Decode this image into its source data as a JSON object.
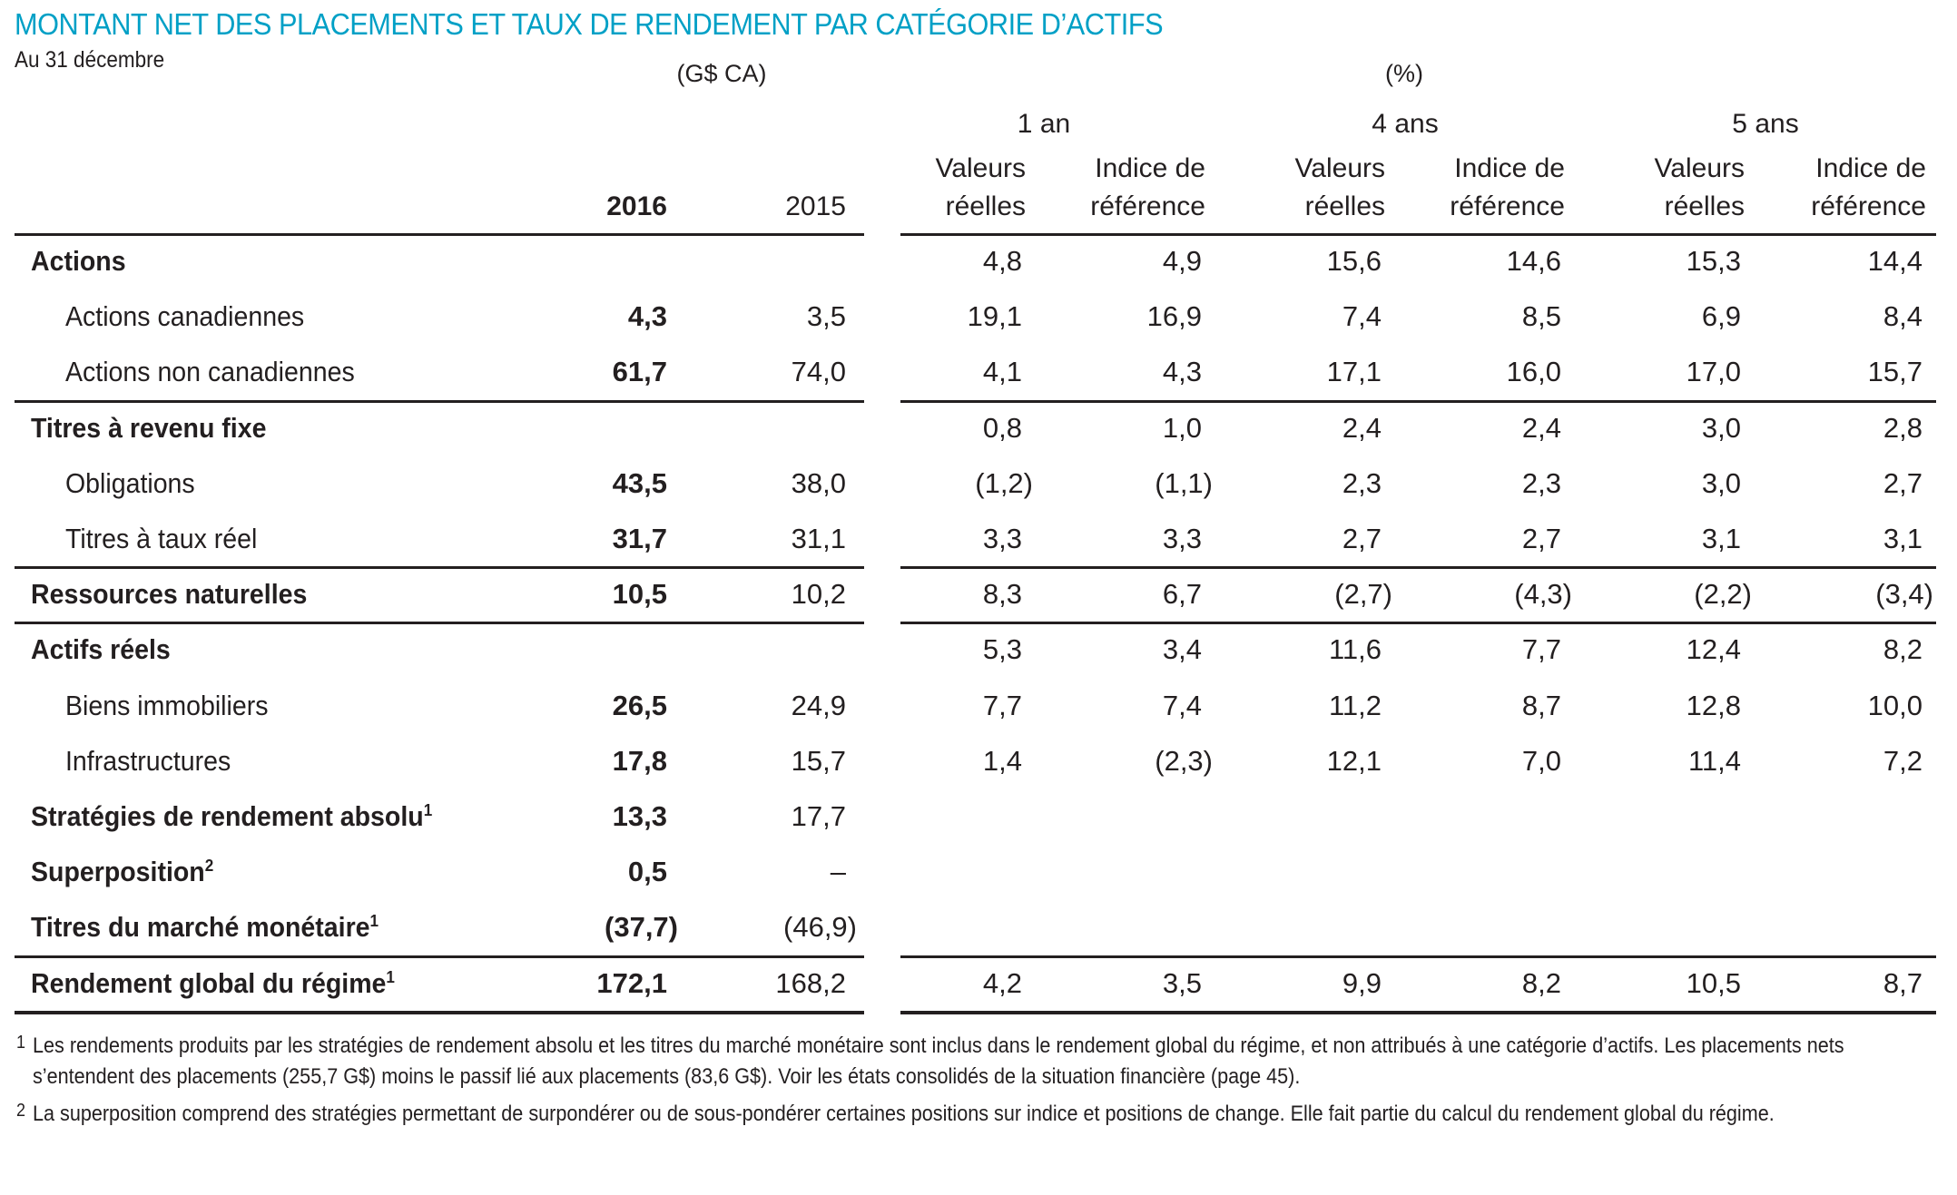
{
  "title": "MONTANT NET DES PLACEMENTS ET TAUX DE RENDEMENT PAR CATÉGORIE D’ACTIFS",
  "subtitle": "Au 31 décembre",
  "colors": {
    "title": "#00a0c6",
    "text": "#231f20"
  },
  "header": {
    "amount_unit": "(G$ CA)",
    "return_unit": "(%)",
    "years": [
      "2016",
      "2015"
    ],
    "groups": [
      "1 an",
      "4 ans",
      "5 ans"
    ],
    "subcols": [
      {
        "line1": "Valeurs",
        "line2": "réelles"
      },
      {
        "line1": "Indice de",
        "line2": "référence"
      },
      {
        "line1": "Valeurs",
        "line2": "réelles"
      },
      {
        "line1": "Indice de",
        "line2": "référence"
      },
      {
        "line1": "Valeurs",
        "line2": "réelles"
      },
      {
        "line1": "Indice de",
        "line2": "référence"
      }
    ]
  },
  "rows": [
    {
      "label": "Actions",
      "sup": "",
      "type": "section",
      "v2016": "",
      "v2015": "",
      "r": [
        "4,8",
        "4,9",
        "15,6",
        "14,6",
        "15,3",
        "14,4"
      ]
    },
    {
      "label": "Actions canadiennes",
      "sup": "",
      "type": "sub",
      "v2016": "4,3",
      "v2015": "3,5",
      "r": [
        "19,1",
        "16,9",
        "7,4",
        "8,5",
        "6,9",
        "8,4"
      ]
    },
    {
      "label": "Actions non canadiennes",
      "sup": "",
      "type": "sub",
      "v2016": "61,7",
      "v2015": "74,0",
      "r": [
        "4,1",
        "4,3",
        "17,1",
        "16,0",
        "17,0",
        "15,7"
      ]
    },
    {
      "label": "Titres à revenu fixe",
      "sup": "",
      "type": "section",
      "v2016": "",
      "v2015": "",
      "r": [
        "0,8",
        "1,0",
        "2,4",
        "2,4",
        "3,0",
        "2,8"
      ]
    },
    {
      "label": "Obligations",
      "sup": "",
      "type": "sub",
      "v2016": "43,5",
      "v2015": "38,0",
      "r": [
        "(1,2)",
        "(1,1)",
        "2,3",
        "2,3",
        "3,0",
        "2,7"
      ]
    },
    {
      "label": "Titres à taux réel",
      "sup": "",
      "type": "sub",
      "v2016": "31,7",
      "v2015": "31,1",
      "r": [
        "3,3",
        "3,3",
        "2,7",
        "2,7",
        "3,1",
        "3,1"
      ]
    },
    {
      "label": "Ressources naturelles",
      "sup": "",
      "type": "section",
      "v2016": "10,5",
      "v2015": "10,2",
      "r": [
        "8,3",
        "6,7",
        "(2,7)",
        "(4,3)",
        "(2,2)",
        "(3,4)"
      ]
    },
    {
      "label": "Actifs réels",
      "sup": "",
      "type": "section",
      "v2016": "",
      "v2015": "",
      "r": [
        "5,3",
        "3,4",
        "11,6",
        "7,7",
        "12,4",
        "8,2"
      ]
    },
    {
      "label": "Biens immobiliers",
      "sup": "",
      "type": "sub",
      "v2016": "26,5",
      "v2015": "24,9",
      "r": [
        "7,7",
        "7,4",
        "11,2",
        "8,7",
        "12,8",
        "10,0"
      ]
    },
    {
      "label": "Infrastructures",
      "sup": "",
      "type": "sub",
      "v2016": "17,8",
      "v2015": "15,7",
      "r": [
        "1,4",
        "(2,3)",
        "12,1",
        "7,0",
        "11,4",
        "7,2"
      ]
    },
    {
      "label": "Stratégies de rendement absolu",
      "sup": "1",
      "type": "section",
      "v2016": "13,3",
      "v2015": "17,7",
      "r": [
        "",
        "",
        "",
        "",
        "",
        ""
      ]
    },
    {
      "label": "Superposition",
      "sup": "2",
      "type": "section",
      "v2016": "0,5",
      "v2015": "–",
      "r": [
        "",
        "",
        "",
        "",
        "",
        ""
      ]
    },
    {
      "label": "Titres du marché monétaire",
      "sup": "1",
      "type": "section",
      "v2016": "(37,7)",
      "v2015": "(46,9)",
      "r": [
        "",
        "",
        "",
        "",
        "",
        ""
      ]
    },
    {
      "label": "Rendement global du régime",
      "sup": "1",
      "type": "section",
      "v2016": "172,1",
      "v2015": "168,2",
      "r": [
        "4,2",
        "3,5",
        "9,9",
        "8,2",
        "10,5",
        "8,7"
      ]
    }
  ],
  "footnotes": [
    {
      "mark": "1",
      "text": "Les rendements produits par les stratégies de rendement absolu et les titres du marché monétaire sont inclus dans le rendement global du régime, et non attribués à une catégorie d’actifs. Les placements nets s’entendent des placements (255,7 G$) moins le passif lié aux placements (83,6 G$). Voir les états consolidés de la situation financière (page 45)."
    },
    {
      "mark": "2",
      "text": "La superposition comprend des stratégies permettant de surpondérer ou de sous-pondérer certaines positions sur indice et positions de change. Elle fait partie du calcul du rendement global du régime."
    }
  ]
}
